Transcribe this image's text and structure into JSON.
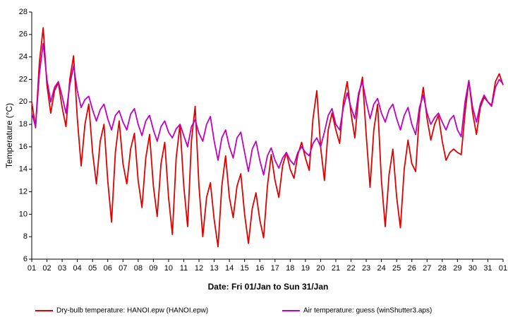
{
  "chart_data": {
    "type": "line",
    "x_label": "Date: Fri 01/Jan to Sun 31/Jan",
    "y_label": "Temperature (°C)",
    "xlim": [
      0,
      31
    ],
    "ylim": [
      6,
      28
    ],
    "yticks": [
      6,
      8,
      10,
      12,
      14,
      16,
      18,
      20,
      22,
      24,
      26,
      28
    ],
    "xticks": [
      {
        "value": 0,
        "label": "01"
      },
      {
        "value": 1,
        "label": "02"
      },
      {
        "value": 2,
        "label": "03"
      },
      {
        "value": 3,
        "label": "04"
      },
      {
        "value": 4,
        "label": "05"
      },
      {
        "value": 5,
        "label": "06"
      },
      {
        "value": 6,
        "label": "07"
      },
      {
        "value": 7,
        "label": "08"
      },
      {
        "value": 8,
        "label": "09"
      },
      {
        "value": 9,
        "label": "10"
      },
      {
        "value": 10,
        "label": "11"
      },
      {
        "value": 11,
        "label": "12"
      },
      {
        "value": 12,
        "label": "13"
      },
      {
        "value": 13,
        "label": "14"
      },
      {
        "value": 14,
        "label": "15"
      },
      {
        "value": 15,
        "label": "16"
      },
      {
        "value": 16,
        "label": "17"
      },
      {
        "value": 17,
        "label": "18"
      },
      {
        "value": 18,
        "label": "19"
      },
      {
        "value": 19,
        "label": "20"
      },
      {
        "value": 20,
        "label": "21"
      },
      {
        "value": 21,
        "label": "22"
      },
      {
        "value": 22,
        "label": "23"
      },
      {
        "value": 23,
        "label": "24"
      },
      {
        "value": 24,
        "label": "25"
      },
      {
        "value": 25,
        "label": "26"
      },
      {
        "value": 26,
        "label": "27"
      },
      {
        "value": 27,
        "label": "28"
      },
      {
        "value": 28,
        "label": "29"
      },
      {
        "value": 29,
        "label": "30"
      },
      {
        "value": 30,
        "label": "31"
      },
      {
        "value": 31,
        "label": "01"
      }
    ],
    "x": [
      0,
      0.25,
      0.5,
      0.75,
      1,
      1.25,
      1.5,
      1.75,
      2,
      2.25,
      2.5,
      2.75,
      3,
      3.25,
      3.5,
      3.75,
      4,
      4.25,
      4.5,
      4.75,
      5,
      5.25,
      5.5,
      5.75,
      6,
      6.25,
      6.5,
      6.75,
      7,
      7.25,
      7.5,
      7.75,
      8,
      8.25,
      8.5,
      8.75,
      9,
      9.25,
      9.5,
      9.75,
      10,
      10.25,
      10.5,
      10.75,
      11,
      11.25,
      11.5,
      11.75,
      12,
      12.25,
      12.5,
      12.75,
      13,
      13.25,
      13.5,
      13.75,
      14,
      14.25,
      14.5,
      14.75,
      15,
      15.25,
      15.5,
      15.75,
      16,
      16.25,
      16.5,
      16.75,
      17,
      17.25,
      17.5,
      17.75,
      18,
      18.25,
      18.5,
      18.75,
      19,
      19.25,
      19.5,
      19.75,
      20,
      20.25,
      20.5,
      20.75,
      21,
      21.25,
      21.5,
      21.75,
      22,
      22.25,
      22.5,
      22.75,
      23,
      23.25,
      23.5,
      23.75,
      24,
      24.25,
      24.5,
      24.75,
      25,
      25.25,
      25.5,
      25.75,
      26,
      26.25,
      26.5,
      26.75,
      27,
      27.25,
      27.5,
      27.75,
      28,
      28.25,
      28.5,
      28.75,
      29,
      29.25,
      29.5,
      29.75,
      30,
      30.25,
      30.5,
      30.75,
      31
    ],
    "series": [
      {
        "name": "Dry-bulb temperature: HANOI.epw (HANOI.epw)",
        "color": "#e00000",
        "values": [
          20.0,
          17.7,
          23.5,
          26.6,
          21.5,
          19.0,
          21.0,
          21.7,
          19.5,
          17.8,
          22.0,
          24.1,
          18.5,
          14.3,
          18.0,
          19.8,
          15.5,
          12.7,
          16.5,
          18.0,
          13.0,
          9.3,
          15.5,
          18.3,
          14.5,
          12.7,
          15.8,
          17.2,
          13.0,
          10.6,
          15.0,
          17.1,
          12.5,
          9.8,
          14.5,
          16.4,
          11.5,
          8.2,
          15.0,
          18.0,
          12.5,
          8.9,
          16.5,
          19.6,
          12.5,
          8.0,
          11.5,
          12.8,
          9.5,
          7.1,
          12.5,
          15.2,
          11.5,
          9.7,
          12.5,
          13.6,
          10.0,
          7.4,
          10.5,
          11.9,
          9.5,
          7.9,
          12.5,
          15.3,
          13.0,
          11.5,
          14.3,
          15.5,
          14.0,
          13.2,
          15.3,
          16.4,
          15.0,
          13.9,
          18.5,
          21.0,
          16.0,
          13.0,
          17.5,
          19.0,
          17.5,
          16.3,
          20.0,
          21.8,
          19.0,
          16.8,
          20.5,
          22.2,
          17.0,
          12.4,
          17.5,
          19.8,
          13.0,
          8.9,
          13.5,
          15.8,
          11.5,
          8.8,
          14.0,
          16.6,
          14.5,
          13.8,
          19.0,
          21.3,
          18.5,
          16.6,
          18.0,
          18.8,
          16.5,
          14.8,
          15.5,
          15.8,
          15.5,
          15.3,
          19.0,
          21.9,
          19.0,
          17.1,
          19.5,
          20.4,
          20.0,
          19.7,
          21.8,
          22.5,
          21.5
        ]
      },
      {
        "name": "Air temperature: guess (winShutter3.aps)",
        "color": "#c000c0",
        "values": [
          19.0,
          17.8,
          22.5,
          25.2,
          22.0,
          20.0,
          21.3,
          21.8,
          20.5,
          19.0,
          21.5,
          23.2,
          21.0,
          19.5,
          20.2,
          20.5,
          19.3,
          18.3,
          19.3,
          19.8,
          18.5,
          17.5,
          18.8,
          19.2,
          18.2,
          17.5,
          18.9,
          19.4,
          18.0,
          17.0,
          18.3,
          18.8,
          17.5,
          16.5,
          17.8,
          18.3,
          17.3,
          16.8,
          17.6,
          18.0,
          17.0,
          16.0,
          17.8,
          18.4,
          17.2,
          16.5,
          18.0,
          18.7,
          16.5,
          14.8,
          16.8,
          17.5,
          16.0,
          15.0,
          16.8,
          17.3,
          15.5,
          13.8,
          15.8,
          16.5,
          14.8,
          13.5,
          15.2,
          15.9,
          14.8,
          14.1,
          15.0,
          15.5,
          14.8,
          14.4,
          15.5,
          16.0,
          15.5,
          15.2,
          16.3,
          16.8,
          16.0,
          17.3,
          18.8,
          19.4,
          18.0,
          17.5,
          19.5,
          20.8,
          19.5,
          18.5,
          20.8,
          21.8,
          20.0,
          18.5,
          19.8,
          20.3,
          19.0,
          18.2,
          19.3,
          19.8,
          18.5,
          17.5,
          18.8,
          19.5,
          18.0,
          17.1,
          19.5,
          20.6,
          19.0,
          18.0,
          18.6,
          19.0,
          18.2,
          17.5,
          18.4,
          18.8,
          17.5,
          16.9,
          20.0,
          21.9,
          19.5,
          18.2,
          19.8,
          20.6,
          20.0,
          19.6,
          21.3,
          22.0,
          21.6
        ]
      }
    ]
  }
}
